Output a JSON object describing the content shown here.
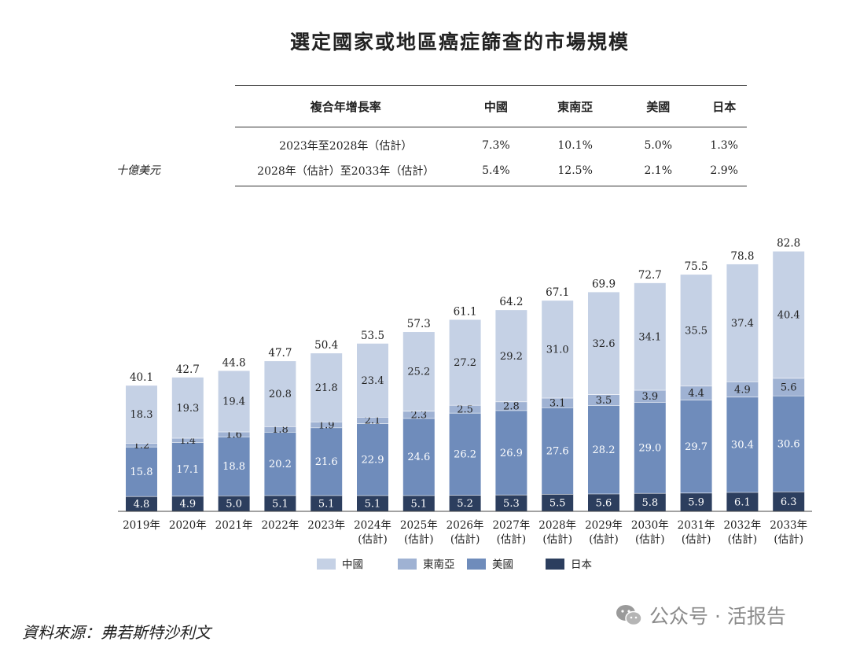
{
  "title": "選定國家或地區癌症篩查的市場規模",
  "unit_label": "十億美元",
  "cagr_table": {
    "header": [
      "複合年增長率",
      "中國",
      "東南亞",
      "美國",
      "日本"
    ],
    "rows": [
      {
        "period": "2023年至2028年（估計）",
        "values": [
          "7.3%",
          "10.1%",
          "5.0%",
          "1.3%"
        ]
      },
      {
        "period": "2028年（估計）至2033年（估計）",
        "values": [
          "5.4%",
          "12.5%",
          "2.1%",
          "2.9%"
        ]
      }
    ]
  },
  "source": "資料來源：弗若斯特沙利文",
  "watermark": "公众号 · 活报告",
  "chart_data": {
    "type": "bar",
    "stacked": true,
    "categories": [
      [
        "2019年"
      ],
      [
        "2020年"
      ],
      [
        "2021年"
      ],
      [
        "2022年"
      ],
      [
        "2023年"
      ],
      [
        "2024年",
        "(估計)"
      ],
      [
        "2025年",
        "(估計)"
      ],
      [
        "2026年",
        "(估計)"
      ],
      [
        "2027年",
        "(估計)"
      ],
      [
        "2028年",
        "(估計)"
      ],
      [
        "2029年",
        "(估計)"
      ],
      [
        "2030年",
        "(估計)"
      ],
      [
        "2031年",
        "(估計)"
      ],
      [
        "2032年",
        "(估計)"
      ],
      [
        "2033年",
        "(估計)"
      ]
    ],
    "totals": [
      "40.1",
      "42.7",
      "44.8",
      "47.7",
      "50.4",
      "53.5",
      "57.3",
      "61.1",
      "64.2",
      "67.1",
      "69.9",
      "72.7",
      "75.5",
      "78.8",
      "82.8"
    ],
    "series": [
      {
        "name": "日本",
        "color": "#2c3e5e",
        "label_color": "#ffffff",
        "values": [
          4.8,
          4.9,
          5.0,
          5.1,
          5.1,
          5.1,
          5.1,
          5.2,
          5.3,
          5.5,
          5.6,
          5.8,
          5.9,
          6.1,
          6.3
        ]
      },
      {
        "name": "美國",
        "color": "#6f8cbb",
        "label_color": "#ffffff",
        "values": [
          15.8,
          17.1,
          18.8,
          20.2,
          21.6,
          22.9,
          24.6,
          26.2,
          26.9,
          27.6,
          28.2,
          29.0,
          29.7,
          30.4,
          30.6
        ]
      },
      {
        "name": "東南亞",
        "color": "#9fb2d3",
        "label_color": "#222222",
        "values": [
          1.2,
          1.4,
          1.6,
          1.8,
          1.9,
          2.1,
          2.3,
          2.5,
          2.8,
          3.1,
          3.5,
          3.9,
          4.4,
          4.9,
          5.6
        ]
      },
      {
        "name": "中國",
        "color": "#c5d1e5",
        "label_color": "#222222",
        "values": [
          18.3,
          19.3,
          19.4,
          20.8,
          21.8,
          23.4,
          25.2,
          27.2,
          29.2,
          31.0,
          32.6,
          34.1,
          35.5,
          37.4,
          40.4
        ]
      }
    ],
    "legend_order": [
      "中國",
      "東南亞",
      "美國",
      "日本"
    ],
    "legend_position": "bottom-center",
    "ylim": [
      0,
      82.8
    ],
    "grid": false
  }
}
